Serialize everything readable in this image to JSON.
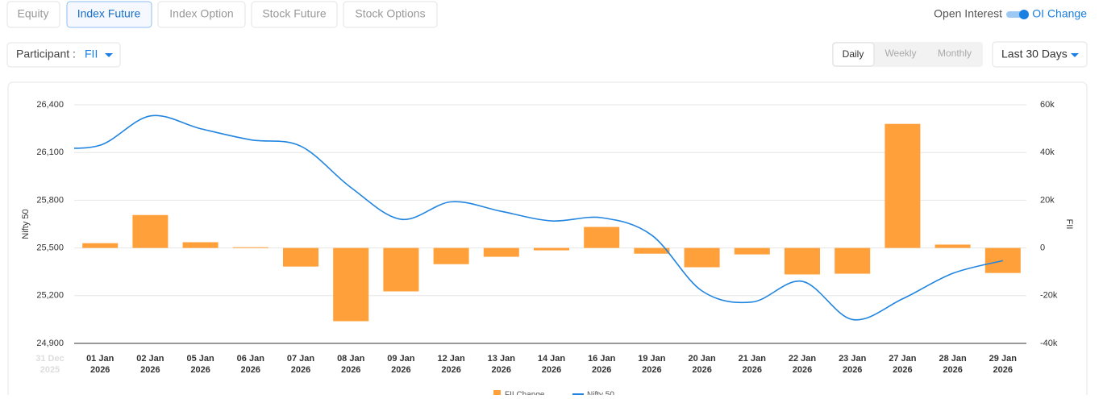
{
  "ui": {
    "tabs": [
      "Equity",
      "Index Future",
      "Index Option",
      "Stock Future",
      "Stock Options"
    ],
    "toggle_left": "Open Interest",
    "toggle_right": "OI Change",
    "participant_label": "Participant :",
    "participant_value": "FII",
    "periods": [
      "Daily",
      "Weekly",
      "Monthly"
    ],
    "range": "Last 30 Days"
  },
  "chart_data": {
    "type": "bar-line",
    "categories": [
      "31 Dec 2025",
      "01 Jan 2026",
      "02 Jan 2026",
      "05 Jan 2026",
      "06 Jan 2026",
      "07 Jan 2026",
      "08 Jan 2026",
      "09 Jan 2026",
      "12 Jan 2026",
      "13 Jan 2026",
      "14 Jan 2026",
      "16 Jan 2026",
      "19 Jan 2026",
      "20 Jan 2026",
      "21 Jan 2026",
      "22 Jan 2026",
      "23 Jan 2026",
      "27 Jan 2026",
      "28 Jan 2026",
      "29 Jan 2026"
    ],
    "series": [
      {
        "name": "FII Change",
        "color": "#ffa03a",
        "axis": "y2",
        "kind": "bar",
        "values": [
          null,
          2000,
          13800,
          2400,
          300,
          -7800,
          -30700,
          -18200,
          -6800,
          -3700,
          -1000,
          8800,
          -2400,
          -8100,
          -2700,
          -11100,
          -10800,
          52000,
          1400,
          -10500
        ]
      },
      {
        "name": "Nifty 50",
        "color": "#2185e0",
        "axis": "y",
        "kind": "line",
        "values": [
          26130,
          26146,
          26330,
          26250,
          26180,
          26140,
          25880,
          25680,
          25790,
          25730,
          25670,
          25690,
          25580,
          25230,
          25160,
          25290,
          25050,
          25180,
          25340,
          25420
        ]
      }
    ],
    "ylabel": "Nifty 50",
    "y2label": "FII",
    "ylim": [
      24900,
      26400
    ],
    "yticks": [
      {
        "value": 24900,
        "label": "24,900"
      },
      {
        "value": 25200,
        "label": "25,200"
      },
      {
        "value": 25500,
        "label": "25,500"
      },
      {
        "value": 25800,
        "label": "25,800"
      },
      {
        "value": 26100,
        "label": "26,100"
      },
      {
        "value": 26400,
        "label": "26,400"
      }
    ],
    "y2lim": [
      -40000,
      60000
    ],
    "y2ticks": [
      {
        "value": -40000,
        "label": "-40k"
      },
      {
        "value": -20000,
        "label": "-20k"
      },
      0,
      {
        "value": 20000,
        "label": "20k"
      },
      {
        "value": 40000,
        "label": "40k"
      },
      {
        "value": 60000,
        "label": "60k"
      }
    ],
    "grid": true,
    "legend": "bottom"
  }
}
